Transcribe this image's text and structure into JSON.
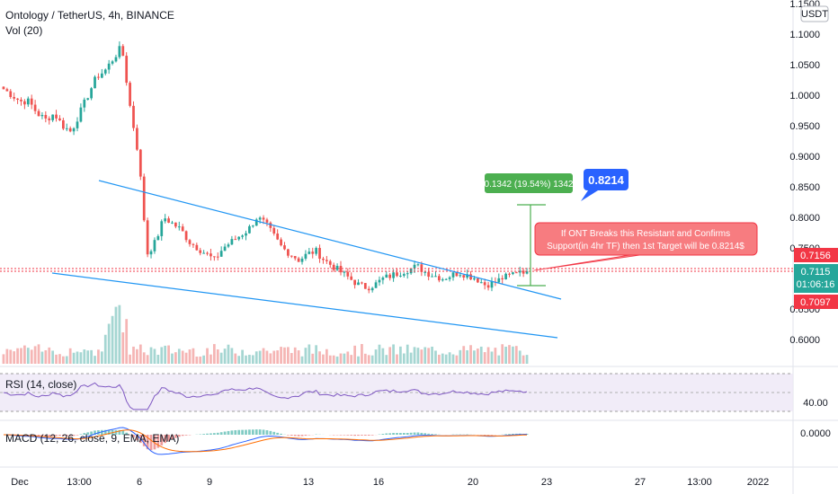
{
  "header": {
    "symbol_line": "Ontology / TetherUS, 4h, BINANCE",
    "volume_label": "Vol (20)"
  },
  "price_axis": {
    "currency_button": "USDT",
    "ticks": [
      "1.1500",
      "1.1000",
      "1.0500",
      "1.0000",
      "0.9500",
      "0.9000",
      "0.8500",
      "0.8000",
      "0.7500",
      "0.6500",
      "0.6000"
    ],
    "tick_values": [
      1.15,
      1.1,
      1.05,
      1.0,
      0.95,
      0.9,
      0.85,
      0.8,
      0.75,
      0.65,
      0.6
    ],
    "labels": {
      "resistance": "0.7156",
      "last_price": "0.7115",
      "countdown": "01:06:16",
      "support": "0.7097"
    }
  },
  "time_axis": {
    "ticks": [
      "Dec",
      "13:00",
      "6",
      "9",
      "13",
      "16",
      "20",
      "23",
      "27",
      "13:00",
      "2022"
    ]
  },
  "annotations": {
    "measure": "0.1342 (19.54%) 1342",
    "target": "0.8214",
    "note_line1": "If ONT Breaks this Resistant and Confirms",
    "note_line2": "Support(in 4hr TF) then 1st Target will be 0.8214$"
  },
  "rsi": {
    "label": "RSI (14, close)",
    "value_label": "40.00"
  },
  "macd": {
    "label": "MACD (12, 26, close, 9, EMA, EMA)",
    "value_label": "0.0000"
  },
  "colors": {
    "up": "#26a69a",
    "down": "#ef5350",
    "trendline": "#2196f3",
    "rsi_line": "#7e57c2",
    "macd_line": "#2962ff",
    "signal_line": "#ff6d00",
    "price_badge": "#26a69a",
    "resistance_badge": "#f23645",
    "target_badge": "#2962ff",
    "measure_badge": "#4caf50",
    "note_fill": "#f77c80"
  },
  "chart_data": {
    "type": "candlestick",
    "symbol": "Ontology / TetherUS",
    "interval": "4h",
    "exchange": "BINANCE",
    "ylim": [
      0.56,
      1.16
    ],
    "close_path": [
      1.01,
      1.0,
      0.99,
      0.99,
      0.97,
      0.96,
      0.97,
      0.95,
      0.94,
      0.97,
      1.0,
      1.03,
      1.04,
      1.06,
      1.08,
      0.98,
      0.9,
      0.74,
      0.76,
      0.8,
      0.79,
      0.78,
      0.76,
      0.75,
      0.74,
      0.73,
      0.75,
      0.76,
      0.77,
      0.78,
      0.8,
      0.79,
      0.77,
      0.75,
      0.74,
      0.73,
      0.74,
      0.745,
      0.73,
      0.72,
      0.71,
      0.7,
      0.69,
      0.685,
      0.69,
      0.7,
      0.705,
      0.71,
      0.715,
      0.72,
      0.71,
      0.705,
      0.7,
      0.705,
      0.71,
      0.705,
      0.7,
      0.69,
      0.692,
      0.7,
      0.705,
      0.715,
      0.7115
    ],
    "resistance": 0.7156,
    "last_price": 0.7115,
    "support": 0.7097,
    "target": 0.8214,
    "measure": {
      "change": 0.1342,
      "percent": 19.54,
      "ticks": 1342
    },
    "rsi_level": 40.0
  }
}
